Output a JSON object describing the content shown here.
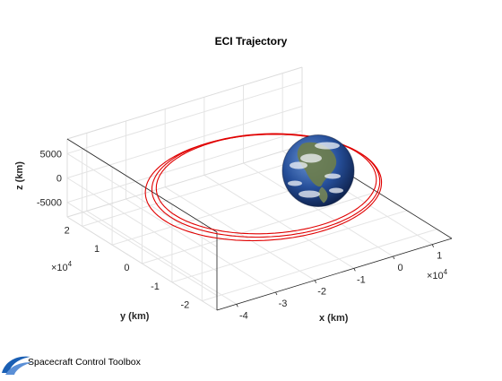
{
  "chart_data": {
    "type": "line3d",
    "title": "ECI Trajectory",
    "xlabel": "x (km)",
    "ylabel": "y (km)",
    "zlabel": "z (km)",
    "x_ticks": [
      "-4",
      "-3",
      "-2",
      "-1",
      "0",
      "1"
    ],
    "y_ticks": [
      "-2",
      "-1",
      "0",
      "1",
      "2"
    ],
    "z_ticks": [
      "5000",
      "0",
      "-5000"
    ],
    "x_exponent": "×10",
    "x_exponent_power": "4",
    "y_exponent": "×10",
    "y_exponent_power": "4",
    "xlim": [
      -45000,
      15000
    ],
    "ylim": [
      -25000,
      25000
    ],
    "zlim": [
      -8000,
      8000
    ],
    "grid": true,
    "series": [
      {
        "color": "#e00000",
        "loops": [
          {
            "center": [
              -14000,
              0,
              0
            ],
            "a": 26000,
            "b": 20000
          },
          {
            "center": [
              -13000,
              500,
              0
            ],
            "a": 25000,
            "b": 19500
          },
          {
            "center": [
              -12500,
              1000,
              0
            ],
            "a": 24200,
            "b": 18700
          }
        ]
      }
    ],
    "earth": {
      "center": [
        0,
        0,
        0
      ],
      "label": "Earth"
    }
  },
  "footer": {
    "brand_text": "Spacecraft Control Toolbox",
    "brand_color": "#1a5fb4"
  }
}
